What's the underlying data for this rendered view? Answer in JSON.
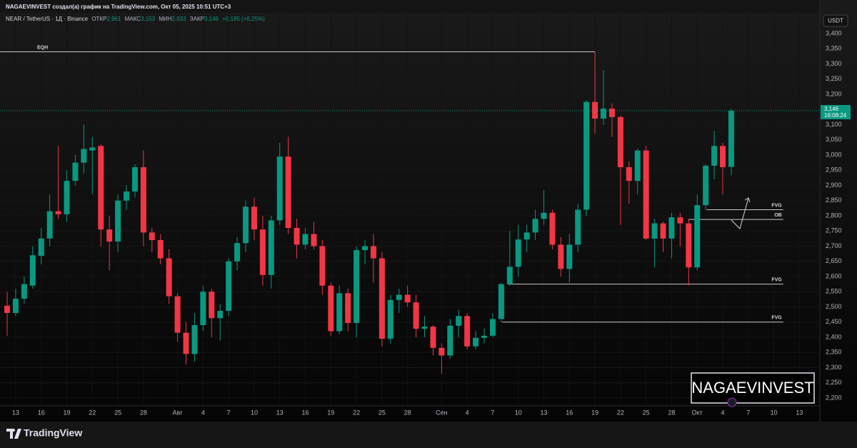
{
  "chart_data": {
    "type": "candlestick",
    "credit": "NAGAEVINVEST создал(а) график на TradingView.com, Окт 05, 2025 10:51 UTC+3",
    "legend": {
      "symbol": "NEAR / TetherUS · 1Д · Binance",
      "open_label": "ОТКР",
      "open": "2,961",
      "high_label": "МАКС",
      "high": "3,153",
      "low_label": "МИН",
      "low": "2,933",
      "close_label": "ЗАКР",
      "close": "3,146",
      "change": "+0,185 (+6,25%)"
    },
    "currency": "USDT",
    "last_price_label": "3,146",
    "countdown": "16:08:24",
    "watermark": "NAGAEVINVEST",
    "brand": "TradingView",
    "up_color": "#089981",
    "down_color": "#f23645",
    "x": [
      0,
      1,
      2,
      3,
      4,
      5,
      6,
      7,
      8,
      9,
      10,
      11,
      12,
      13,
      14,
      15,
      16,
      17,
      18,
      19,
      20,
      21,
      22,
      23,
      24,
      25,
      26,
      27,
      28,
      29,
      30,
      31,
      32,
      33,
      34,
      35,
      36,
      37,
      38,
      39,
      40,
      41,
      42,
      43,
      44,
      45,
      46,
      47,
      48,
      49,
      50,
      51,
      52,
      53,
      54,
      55,
      56,
      57,
      58,
      59,
      60,
      61,
      62,
      63,
      64,
      65,
      66,
      67,
      68,
      69,
      70,
      71,
      72,
      73,
      74,
      75,
      76,
      77,
      78,
      79,
      80,
      81,
      82,
      83,
      84,
      85
    ],
    "open": [
      2504,
      2480,
      2527,
      2570,
      2668,
      2725,
      2815,
      2805,
      2915,
      2975,
      3015,
      3030,
      2755,
      2715,
      2850,
      2880,
      2960,
      2745,
      2720,
      2660,
      2535,
      2415,
      2345,
      2440,
      2550,
      2463,
      2487,
      2650,
      2710,
      2830,
      2755,
      2605,
      2785,
      2995,
      2760,
      2705,
      2740,
      2700,
      2570,
      2420,
      2545,
      2447,
      2687,
      2700,
      2660,
      2395,
      2523,
      2540,
      2515,
      2428,
      2435,
      2365,
      2340,
      2438,
      2470,
      2370,
      2398,
      2405,
      2460,
      2575,
      2632,
      2722,
      2745,
      2790,
      2810,
      2705,
      2625,
      2705,
      2820,
      3175,
      3120,
      3153,
      3125,
      2960,
      2915,
      3015,
      2725,
      2775,
      2725,
      2795,
      2775,
      2630,
      2835,
      2965,
      3030,
      2961
    ],
    "high": [
      2550,
      2560,
      2600,
      2700,
      2760,
      2870,
      3030,
      2950,
      3000,
      3100,
      3060,
      3035,
      2800,
      2870,
      2900,
      2970,
      3015,
      2760,
      2740,
      2690,
      2545,
      2450,
      2480,
      2570,
      2560,
      2510,
      2660,
      2730,
      2850,
      2860,
      2800,
      2800,
      3040,
      3060,
      2790,
      2760,
      2780,
      2720,
      2580,
      2570,
      2560,
      2700,
      2720,
      2740,
      2680,
      2540,
      2560,
      2570,
      2540,
      2470,
      2440,
      2380,
      2460,
      2490,
      2480,
      2420,
      2430,
      2480,
      2580,
      2750,
      2770,
      2770,
      2820,
      2885,
      2820,
      2730,
      2740,
      2840,
      3180,
      3340,
      3280,
      3170,
      3130,
      2980,
      3020,
      3030,
      2790,
      2780,
      2810,
      2810,
      2790,
      2870,
      2970,
      3080,
      3040,
      3153
    ],
    "low": [
      2405,
      2470,
      2510,
      2560,
      2640,
      2700,
      2790,
      2780,
      2900,
      2940,
      2870,
      2700,
      2620,
      2680,
      2820,
      2860,
      2700,
      2680,
      2640,
      2510,
      2385,
      2310,
      2320,
      2420,
      2400,
      2390,
      2470,
      2620,
      2680,
      2720,
      2570,
      2560,
      2770,
      2740,
      2660,
      2690,
      2690,
      2540,
      2405,
      2410,
      2420,
      2400,
      2640,
      2580,
      2370,
      2380,
      2480,
      2500,
      2400,
      2400,
      2340,
      2280,
      2330,
      2400,
      2360,
      2360,
      2380,
      2400,
      2450,
      2570,
      2600,
      2680,
      2720,
      2770,
      2690,
      2600,
      2580,
      2680,
      2800,
      3070,
      3100,
      3060,
      2770,
      2840,
      2870,
      2720,
      2630,
      2680,
      2660,
      2700,
      2570,
      2620,
      2820,
      2920,
      2870,
      2933
    ],
    "close": [
      2480,
      2527,
      2575,
      2670,
      2725,
      2815,
      2805,
      2915,
      2975,
      3020,
      3025,
      2755,
      2715,
      2850,
      2880,
      2960,
      2745,
      2720,
      2660,
      2535,
      2415,
      2345,
      2440,
      2550,
      2463,
      2487,
      2650,
      2710,
      2830,
      2755,
      2605,
      2785,
      2995,
      2760,
      2705,
      2740,
      2700,
      2570,
      2420,
      2545,
      2447,
      2687,
      2700,
      2660,
      2395,
      2523,
      2540,
      2515,
      2428,
      2435,
      2365,
      2340,
      2438,
      2470,
      2370,
      2398,
      2405,
      2460,
      2575,
      2632,
      2722,
      2745,
      2790,
      2810,
      2705,
      2625,
      2705,
      2820,
      3175,
      3120,
      3153,
      3125,
      2960,
      2915,
      3015,
      2725,
      2775,
      2725,
      2795,
      2775,
      2630,
      2835,
      2965,
      3030,
      2960,
      3146
    ],
    "xlim": [
      -0.84,
      95.4
    ],
    "xticks": [
      {
        "value": 1,
        "label": "13"
      },
      {
        "value": 4,
        "label": "16"
      },
      {
        "value": 7,
        "label": "19"
      },
      {
        "value": 10,
        "label": "22"
      },
      {
        "value": 13,
        "label": "25"
      },
      {
        "value": 16,
        "label": "28"
      },
      {
        "value": 20,
        "label": "Авг"
      },
      {
        "value": 23,
        "label": "4"
      },
      {
        "value": 26,
        "label": "7"
      },
      {
        "value": 29,
        "label": "10"
      },
      {
        "value": 32,
        "label": "13"
      },
      {
        "value": 35,
        "label": "16"
      },
      {
        "value": 38,
        "label": "19"
      },
      {
        "value": 41,
        "label": "22"
      },
      {
        "value": 44,
        "label": "25"
      },
      {
        "value": 47,
        "label": "28"
      },
      {
        "value": 51,
        "label": "Сен"
      },
      {
        "value": 54,
        "label": "4"
      },
      {
        "value": 57,
        "label": "7"
      },
      {
        "value": 60,
        "label": "10"
      },
      {
        "value": 63,
        "label": "13"
      },
      {
        "value": 66,
        "label": "16"
      },
      {
        "value": 69,
        "label": "19"
      },
      {
        "value": 72,
        "label": "22"
      },
      {
        "value": 75,
        "label": "25"
      },
      {
        "value": 78,
        "label": "28"
      },
      {
        "value": 81,
        "label": "Окт"
      },
      {
        "value": 84,
        "label": "4"
      },
      {
        "value": 87,
        "label": "7"
      },
      {
        "value": 90,
        "label": "10"
      },
      {
        "value": 93,
        "label": "13"
      }
    ],
    "ylim": [
      2150,
      3500
    ],
    "yticks": [
      {
        "value": 2200,
        "label": "2,200"
      },
      {
        "value": 2250,
        "label": "2,250"
      },
      {
        "value": 2300,
        "label": "2,300"
      },
      {
        "value": 2350,
        "label": "2,350"
      },
      {
        "value": 2400,
        "label": "2,400"
      },
      {
        "value": 2450,
        "label": "2,450"
      },
      {
        "value": 2500,
        "label": "2,500"
      },
      {
        "value": 2550,
        "label": "2,550"
      },
      {
        "value": 2600,
        "label": "2,600"
      },
      {
        "value": 2650,
        "label": "2,650"
      },
      {
        "value": 2700,
        "label": "2,700"
      },
      {
        "value": 2750,
        "label": "2,750"
      },
      {
        "value": 2800,
        "label": "2,800"
      },
      {
        "value": 2850,
        "label": "2,850"
      },
      {
        "value": 2900,
        "label": "2,900"
      },
      {
        "value": 2950,
        "label": "2,950"
      },
      {
        "value": 3000,
        "label": "3,000"
      },
      {
        "value": 3050,
        "label": "3,050"
      },
      {
        "value": 3100,
        "label": "3,100"
      },
      {
        "value": 3150,
        "label": "3,150"
      },
      {
        "value": 3200,
        "label": "3,200"
      },
      {
        "value": 3250,
        "label": "3,250"
      },
      {
        "value": 3300,
        "label": "3,300"
      },
      {
        "value": 3350,
        "label": "3,350"
      },
      {
        "value": 3400,
        "label": "3,400"
      }
    ],
    "levels": [
      {
        "label": "EQH",
        "value": 3340,
        "from": -0.84,
        "to": 69
      },
      {
        "label": "FVG",
        "value": 2820,
        "from": 82.1,
        "to": 91.1
      },
      {
        "label": "OB",
        "value": 2788,
        "from": 80,
        "to": 91.1
      },
      {
        "label": "FVG",
        "value": 2575,
        "from": 58.8,
        "to": 91.1
      },
      {
        "label": "FVG",
        "value": 2450,
        "from": 58.1,
        "to": 91.1
      }
    ]
  }
}
